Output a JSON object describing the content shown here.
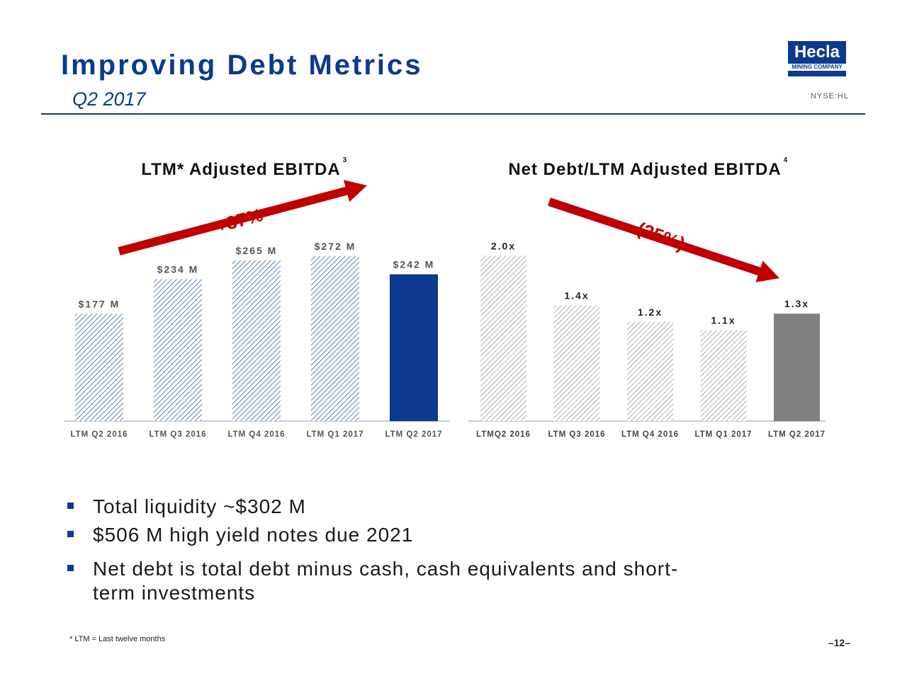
{
  "header": {
    "title": "Improving Debt Metrics",
    "subtitle": "Q2 2017",
    "logo_name": "Hecla",
    "logo_tagline": "MINING COMPANY",
    "ticker": "NYSE:HL"
  },
  "chart_data": [
    {
      "type": "bar",
      "title": "LTM* Adjusted EBITDA",
      "title_footnote": "3",
      "categories": [
        "LTM Q2 2016",
        "LTM Q3 2016",
        "LTM Q4 2016",
        "LTM Q1 2017",
        "LTM Q2 2017"
      ],
      "values": [
        177,
        234,
        265,
        272,
        242
      ],
      "data_labels": [
        "$177 M",
        "$234 M",
        "$265 M",
        "$272 M",
        "$242 M"
      ],
      "ylim": [
        0,
        350
      ],
      "grid": false,
      "highlight_index": 4,
      "colors": {
        "pattern": "#3b5fa8",
        "highlight": "#0b3a8f"
      },
      "annotation": {
        "text": "+37%",
        "direction": "up",
        "color": "#c00000"
      }
    },
    {
      "type": "bar",
      "title": "Net Debt/LTM Adjusted EBITDA",
      "title_footnote": "4",
      "categories": [
        "LTMQ2 2016",
        "LTM Q3 2016",
        "LTM Q4 2016",
        "LTM Q1 2017",
        "LTM Q2 2017"
      ],
      "values": [
        2.0,
        1.4,
        1.2,
        1.1,
        1.3
      ],
      "data_labels": [
        "2.0x",
        "1.4x",
        "1.2x",
        "1.1x",
        "1.3x"
      ],
      "ylim": [
        0,
        2.5
      ],
      "grid": false,
      "highlight_index": 4,
      "colors": {
        "pattern": "#8c8c8c",
        "highlight": "#808080"
      },
      "annotation": {
        "text": "(35%)",
        "direction": "down",
        "color": "#c00000"
      }
    }
  ],
  "bullets": [
    "Total liquidity ~$302 M",
    "$506 M high yield notes due 2021",
    "Net debt is total debt minus cash, cash equivalents and short-",
    "term investments"
  ],
  "footnote": "* LTM = Last twelve months",
  "page_number": "–12–"
}
